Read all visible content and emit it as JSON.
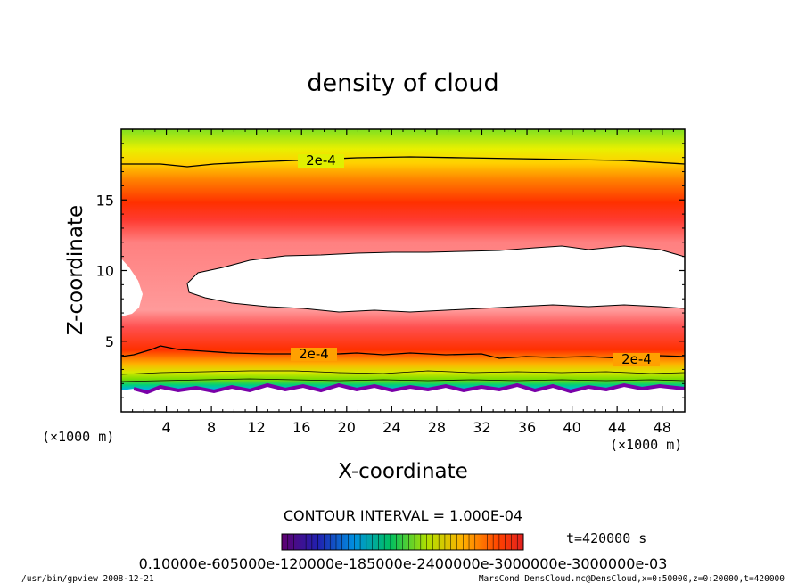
{
  "chart_data": {
    "type": "heatmap",
    "title": "density of cloud",
    "xlabel": "X-coordinate",
    "ylabel": "Z-coordinate",
    "x_unit": "(×1000 m)",
    "y_unit": "(×1000 m)",
    "xlim": [
      0,
      50
    ],
    "ylim": [
      0,
      20
    ],
    "x_ticks": [
      4,
      8,
      12,
      16,
      20,
      24,
      28,
      32,
      36,
      40,
      44,
      48
    ],
    "y_ticks": [
      5,
      10,
      15
    ],
    "contour_interval_text": "CONTOUR INTERVAL = 1.000E-04",
    "contour_labels": [
      "2e-4",
      "2e-4",
      "2e-4"
    ],
    "time_label": "t=420000 s",
    "colorbar_labels_text": "0.10000e-605000e-120000e-185000e-2400000e-3000000e-3000000e-03",
    "colors": {
      "high": "#ff0000",
      "mid": "#ffff00",
      "low": "#00c000",
      "lowest": "#800080"
    }
  },
  "footer": {
    "left": "/usr/bin/gpview  2008-12-21",
    "right": "MarsCond_DensCloud.nc@DensCloud,x=0:50000,z=0:20000,t=420000"
  }
}
